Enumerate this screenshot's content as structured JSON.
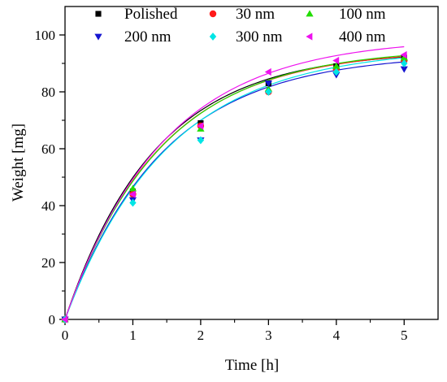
{
  "chart_data": {
    "type": "scatter",
    "xlabel": "Time [h]",
    "ylabel": "Weight [mg]",
    "xlim": [
      0,
      5.5
    ],
    "ylim": [
      0,
      110
    ],
    "x_ticks": [
      "0",
      "1",
      "2",
      "3",
      "4",
      "5"
    ],
    "y_ticks": [
      "0",
      "20",
      "40",
      "60",
      "80",
      "100"
    ],
    "grid": false,
    "legend_position": "top",
    "fit_curves": true,
    "series": [
      {
        "name": "Polished",
        "marker": "square",
        "color": "#000000",
        "points": [
          [
            0,
            0
          ],
          [
            1,
            45
          ],
          [
            2,
            69
          ],
          [
            3,
            83
          ],
          [
            4,
            89
          ],
          [
            5,
            92
          ]
        ],
        "fit": {
          "a": 94.5,
          "k": 0.75
        }
      },
      {
        "name": "30 nm",
        "marker": "circle",
        "color": "#ff1a1a",
        "points": [
          [
            0,
            0
          ],
          [
            1,
            44
          ],
          [
            2,
            68
          ],
          [
            3,
            80
          ],
          [
            4,
            88
          ],
          [
            5,
            91
          ]
        ],
        "fit": {
          "a": 95,
          "k": 0.72
        }
      },
      {
        "name": "100 nm",
        "marker": "triangle-up",
        "color": "#22dd00",
        "points": [
          [
            0,
            0
          ],
          [
            1,
            46
          ],
          [
            2,
            67
          ],
          [
            3,
            81
          ],
          [
            4,
            89
          ],
          [
            5,
            92
          ]
        ],
        "fit": {
          "a": 95.5,
          "k": 0.71
        }
      },
      {
        "name": "200 nm",
        "marker": "triangle-down",
        "color": "#1515d0",
        "points": [
          [
            0,
            0
          ],
          [
            1,
            42
          ],
          [
            2,
            63
          ],
          [
            3,
            83
          ],
          [
            4,
            86
          ],
          [
            5,
            88
          ]
        ],
        "fit": {
          "a": 93.5,
          "k": 0.69
        }
      },
      {
        "name": "300 nm",
        "marker": "diamond",
        "color": "#00e5e5",
        "points": [
          [
            0,
            0
          ],
          [
            1,
            41
          ],
          [
            2,
            63
          ],
          [
            3,
            80
          ],
          [
            4,
            87
          ],
          [
            5,
            90
          ]
        ],
        "fit": {
          "a": 95.5,
          "k": 0.66
        }
      },
      {
        "name": "400 nm",
        "marker": "triangle-left",
        "color": "#ee11ee",
        "points": [
          [
            0,
            0
          ],
          [
            1,
            44
          ],
          [
            2,
            68
          ],
          [
            3,
            87
          ],
          [
            4,
            91
          ],
          [
            5,
            93
          ]
        ],
        "fit": {
          "a": 99,
          "k": 0.69
        }
      }
    ]
  }
}
